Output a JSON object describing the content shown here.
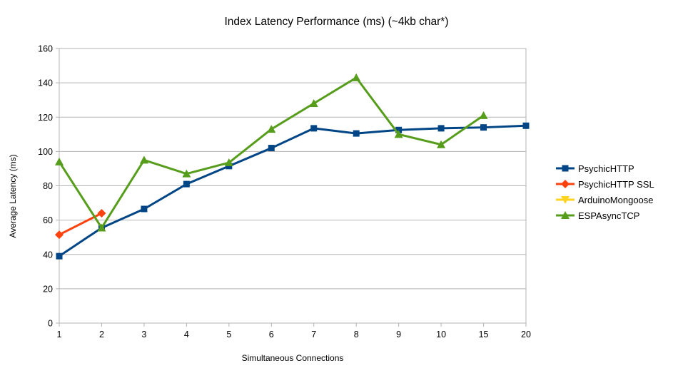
{
  "title": "Index Latency Performance (ms) (~4kb char*)",
  "chart_data": {
    "type": "line",
    "title": "Index Latency Performance (ms) (~4kb char*)",
    "xlabel": "Simultaneous Connections",
    "ylabel": "Average Latency (ms)",
    "categories": [
      "1",
      "2",
      "3",
      "4",
      "5",
      "6",
      "7",
      "8",
      "9",
      "10",
      "15",
      "20"
    ],
    "ylim": [
      0,
      160
    ],
    "ytick_step": 20,
    "grid": "horizontal",
    "legend_position": "right",
    "series": [
      {
        "name": "PsychicHTTP",
        "color": "#004586",
        "marker": "square",
        "values": [
          39,
          55.5,
          66.5,
          81,
          91.5,
          102,
          113.5,
          110.5,
          112.5,
          113.5,
          114,
          115
        ]
      },
      {
        "name": "PsychicHTTP SSL",
        "color": "#FF420E",
        "marker": "diamond",
        "values": [
          51.5,
          64,
          null,
          null,
          null,
          null,
          null,
          null,
          null,
          null,
          null,
          null
        ]
      },
      {
        "name": "ArduinoMongoose",
        "color": "#FFD320",
        "marker": "triangle-down",
        "values": [
          null,
          null,
          null,
          null,
          null,
          null,
          null,
          null,
          null,
          null,
          null,
          null
        ]
      },
      {
        "name": "ESPAsyncTCP",
        "color": "#579D1C",
        "marker": "triangle-up",
        "values": [
          94,
          55.5,
          95,
          87,
          93.5,
          113,
          128,
          143,
          110,
          104,
          121,
          null
        ]
      }
    ]
  },
  "colors": {
    "grid": "#b3b3b3",
    "axis": "#b3b3b3",
    "text": "#000000",
    "background": "#ffffff"
  }
}
